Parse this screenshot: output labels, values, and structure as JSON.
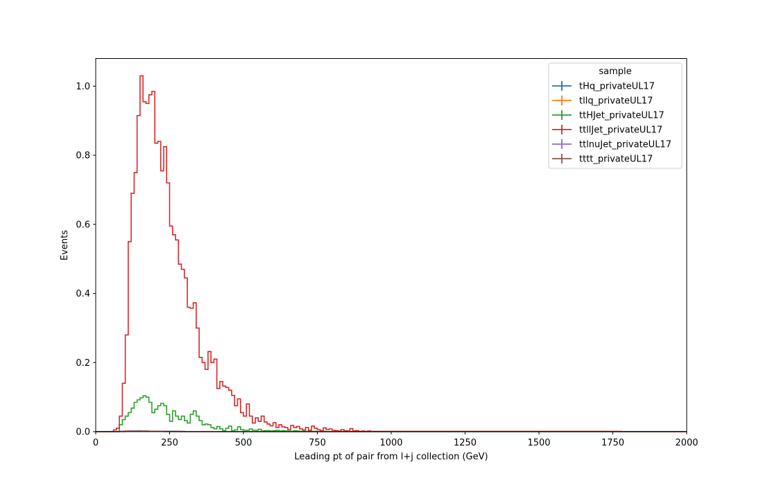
{
  "chart_data": {
    "type": "line",
    "xlabel": "Leading pt of pair from l+j collection (GeV)",
    "ylabel": "Events",
    "xlim": [
      0,
      2000
    ],
    "ylim": [
      0,
      1.08
    ],
    "x_ticks": [
      "0",
      "250",
      "500",
      "750",
      "1000",
      "1250",
      "1500",
      "1750",
      "2000"
    ],
    "y_ticks": [
      "0.0",
      "0.2",
      "0.4",
      "0.6",
      "0.8",
      "1.0"
    ],
    "bin_width": 10,
    "grid": false,
    "legend": {
      "title": "sample",
      "placement": "top-right",
      "entries": [
        {
          "name": "tHq_privateUL17",
          "color": "#1f77b4"
        },
        {
          "name": "tllq_privateUL17",
          "color": "#ff7f0e"
        },
        {
          "name": "ttHJet_privateUL17",
          "color": "#2ca02c"
        },
        {
          "name": "ttllJet_privateUL17",
          "color": "#d62728"
        },
        {
          "name": "ttlnuJet_privateUL17",
          "color": "#9467bd"
        },
        {
          "name": "tttt_privateUL17",
          "color": "#8c564b"
        }
      ]
    },
    "series": [
      {
        "name": "ttllJet_privateUL17",
        "color": "#d62728",
        "bin_start": 60,
        "values": [
          0.005,
          0.01,
          0.045,
          0.14,
          0.28,
          0.55,
          0.69,
          0.75,
          0.915,
          1.03,
          0.955,
          0.95,
          0.975,
          0.985,
          0.835,
          0.84,
          0.755,
          0.825,
          0.72,
          0.595,
          0.57,
          0.555,
          0.485,
          0.47,
          0.445,
          0.36,
          0.357,
          0.373,
          0.3,
          0.215,
          0.2,
          0.18,
          0.232,
          0.2,
          0.21,
          0.125,
          0.145,
          0.132,
          0.128,
          0.12,
          0.105,
          0.075,
          0.095,
          0.055,
          0.045,
          0.08,
          0.045,
          0.025,
          0.04,
          0.03,
          0.045,
          0.028,
          0.022,
          0.017,
          0.026,
          0.012,
          0.02,
          0.014,
          0.012,
          0.006,
          0.018,
          0.012,
          0.015,
          0.008,
          0.005,
          0.012,
          0.004,
          0.016,
          0.01,
          0.006,
          0.003,
          0.011,
          0.006,
          0.008,
          0.004,
          0.003,
          0.002,
          0.006,
          0.003,
          0.002,
          0.009,
          0.002,
          0.003,
          0.001,
          0.002,
          0.001,
          0.002,
          0.001,
          0.001,
          0.001,
          0.001,
          0.001,
          0.001,
          0.001,
          0.001,
          0.001,
          0.001,
          0.001,
          0.001,
          0.001,
          0.001,
          0.001,
          0.001,
          0.001,
          0.001,
          0.001,
          0.001,
          0.001,
          0.001,
          0.001,
          0.001,
          0.001,
          0.001,
          0.001,
          0.001,
          0.001,
          0.001,
          0.001,
          0.001,
          0.001,
          0.001,
          0.001,
          0.001,
          0.001,
          0.001,
          0.001,
          0.001,
          0.001,
          0.001,
          0.001,
          0.001,
          0.001,
          0.001,
          0.001,
          0.001,
          0.001,
          0.001,
          0.001,
          0.001,
          0.001,
          0.001,
          0.001,
          0.001,
          0.001,
          0.001,
          0.001,
          0.001,
          0.001,
          0.001,
          0.001,
          0.001,
          0.001,
          0.001,
          0.001,
          0.001,
          0.001,
          0.001,
          0.001,
          0.001,
          0.001,
          0.001,
          0.001,
          0.001,
          0.001,
          0.001,
          0.001,
          0.001,
          0.001,
          0.001,
          0.001,
          0.001,
          0.001
        ]
      },
      {
        "name": "ttHJet_privateUL17",
        "color": "#2ca02c",
        "bin_start": 80,
        "values": [
          0.02,
          0.035,
          0.045,
          0.055,
          0.068,
          0.085,
          0.092,
          0.098,
          0.104,
          0.1,
          0.085,
          0.055,
          0.065,
          0.075,
          0.082,
          0.075,
          0.05,
          0.03,
          0.06,
          0.045,
          0.035,
          0.045,
          0.032,
          0.025,
          0.05,
          0.06,
          0.045,
          0.032,
          0.02,
          0.022,
          0.02,
          0.012,
          0.008,
          0.015,
          0.008,
          0.003,
          0.01,
          0.016,
          0.003,
          0.005,
          0.014,
          0.006,
          0.004,
          0.004,
          0.008,
          0.004,
          0.004,
          0.007,
          0.002,
          0.003,
          0.003,
          0.002,
          0.003,
          0.004,
          0.002,
          0.003,
          0.002,
          0.002,
          0.001,
          0.003,
          0.002,
          0.001,
          0.002,
          0.001,
          0.002,
          0.001,
          0.001,
          0.001,
          0.001,
          0.001
        ]
      },
      {
        "name": "tHq_privateUL17",
        "color": "#1f77b4",
        "bin_start": 80,
        "values": [
          0.001,
          0.001,
          0.001,
          0.001,
          0.002,
          0.002,
          0.002,
          0.001,
          0.001,
          0.001,
          0.001,
          0.001,
          0.001,
          0.001,
          0.001,
          0.001,
          0.001,
          0.001,
          0.001,
          0.001
        ]
      },
      {
        "name": "tllq_privateUL17",
        "color": "#ff7f0e",
        "bin_start": 80,
        "values": [
          0.001,
          0.001,
          0.002,
          0.002,
          0.002,
          0.001,
          0.001,
          0.001,
          0.001,
          0.001,
          0.001,
          0.001,
          0.001,
          0.001,
          0.001
        ]
      },
      {
        "name": "ttlnuJet_privateUL17",
        "color": "#9467bd",
        "bin_start": 80,
        "values": [
          0.001,
          0.001,
          0.001,
          0.002,
          0.002,
          0.002,
          0.002,
          0.001,
          0.001,
          0.001,
          0.001,
          0.001,
          0.001,
          0.001,
          0.001,
          0.001
        ]
      },
      {
        "name": "tttt_privateUL17",
        "color": "#8c564b",
        "bin_start": 100,
        "values": [
          0.001,
          0.001,
          0.001,
          0.001,
          0.002,
          0.002,
          0.002,
          0.002,
          0.001,
          0.001,
          0.001,
          0.001,
          0.001,
          0.001,
          0.001,
          0.001,
          0.001,
          0.001,
          0.001,
          0.001
        ]
      }
    ]
  }
}
